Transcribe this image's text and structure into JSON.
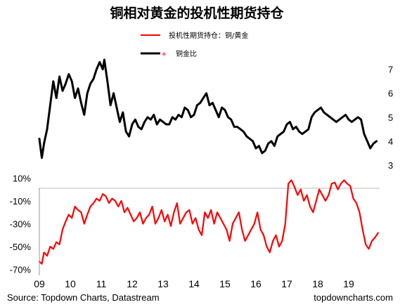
{
  "chart_data": {
    "title": "铜相对黄金的投机性期货持仓",
    "source": "Source: Topdown Charts, Datastream",
    "watermark": "topdowncharts.com",
    "colors": {
      "ratio": "#000000",
      "positioning": "#ff0000"
    },
    "legend": [
      {
        "key": "positioning",
        "label": "投机性期货持仓：铜/黄金"
      },
      {
        "key": "ratio",
        "label": "铜金比"
      }
    ],
    "x_tick_labels": [
      "09",
      "10",
      "11",
      "12",
      "13",
      "14",
      "15",
      "16",
      "17",
      "18",
      "19"
    ],
    "x_range": [
      2009.0,
      2020.0
    ],
    "panels": [
      {
        "name": "copper-gold-ratio",
        "type": "line",
        "axis_side": "right",
        "ylim": [
          3.0,
          7.4
        ],
        "yticks": [
          3,
          4,
          5,
          6,
          7
        ],
        "series": [
          {
            "key": "ratio",
            "x": [
              2009.0,
              2009.08,
              2009.15,
              2009.25,
              2009.35,
              2009.45,
              2009.55,
              2009.65,
              2009.75,
              2009.85,
              2009.95,
              2010.05,
              2010.15,
              2010.25,
              2010.35,
              2010.45,
              2010.55,
              2010.65,
              2010.75,
              2010.85,
              2010.95,
              2011.05,
              2011.1,
              2011.2,
              2011.3,
              2011.4,
              2011.5,
              2011.6,
              2011.7,
              2011.8,
              2011.9,
              2012.0,
              2012.1,
              2012.2,
              2012.3,
              2012.4,
              2012.5,
              2012.6,
              2012.7,
              2012.8,
              2012.9,
              2013.0,
              2013.1,
              2013.2,
              2013.3,
              2013.4,
              2013.5,
              2013.6,
              2013.7,
              2013.8,
              2013.9,
              2014.0,
              2014.1,
              2014.2,
              2014.3,
              2014.4,
              2014.5,
              2014.6,
              2014.7,
              2014.8,
              2014.9,
              2015.0,
              2015.1,
              2015.2,
              2015.3,
              2015.4,
              2015.5,
              2015.6,
              2015.7,
              2015.8,
              2015.9,
              2016.0,
              2016.1,
              2016.2,
              2016.3,
              2016.4,
              2016.5,
              2016.6,
              2016.7,
              2016.8,
              2016.9,
              2017.0,
              2017.1,
              2017.2,
              2017.3,
              2017.4,
              2017.5,
              2017.6,
              2017.7,
              2017.8,
              2017.9,
              2018.0,
              2018.1,
              2018.2,
              2018.3,
              2018.4,
              2018.5,
              2018.6,
              2018.7,
              2018.8,
              2018.9,
              2019.0,
              2019.1,
              2019.2,
              2019.3,
              2019.4,
              2019.5,
              2019.6,
              2019.7,
              2019.8,
              2019.9
            ],
            "values": [
              4.1,
              3.3,
              3.9,
              4.5,
              5.5,
              6.5,
              5.8,
              6.7,
              6.1,
              6.4,
              6.8,
              6.5,
              5.8,
              6.2,
              5.6,
              5.1,
              6.0,
              6.4,
              6.6,
              7.0,
              7.3,
              7.0,
              7.4,
              6.5,
              5.5,
              6.0,
              5.4,
              4.8,
              5.2,
              4.4,
              4.2,
              4.7,
              4.9,
              4.6,
              4.5,
              4.8,
              5.0,
              4.9,
              5.1,
              4.7,
              4.9,
              4.8,
              4.7,
              4.7,
              5.0,
              4.9,
              5.1,
              5.0,
              5.4,
              5.3,
              5.0,
              5.1,
              5.5,
              5.6,
              5.8,
              6.0,
              5.5,
              5.6,
              5.3,
              5.0,
              5.4,
              5.3,
              5.0,
              4.9,
              4.6,
              4.6,
              4.5,
              4.4,
              4.2,
              4.1,
              4.0,
              3.7,
              3.8,
              3.5,
              3.6,
              3.9,
              4.0,
              3.8,
              4.2,
              4.3,
              4.4,
              4.7,
              4.8,
              4.5,
              4.6,
              4.4,
              4.3,
              4.4,
              4.5,
              5.0,
              5.2,
              5.3,
              5.4,
              5.2,
              5.1,
              5.0,
              4.9,
              4.8,
              4.9,
              5.0,
              5.1,
              4.9,
              4.8,
              4.9,
              5.0,
              4.9,
              4.3,
              4.0,
              3.7,
              3.9,
              4.0
            ]
          }
        ]
      },
      {
        "name": "speculative-positioning",
        "type": "line",
        "axis_side": "left",
        "ylim": [
          -0.72,
          0.12
        ],
        "yticks": [
          0.1,
          -0.1,
          -0.3,
          -0.5,
          -0.7
        ],
        "ytick_labels": [
          "10%",
          "-10%",
          "-30%",
          "-50%",
          "-70%"
        ],
        "series": [
          {
            "key": "positioning",
            "x": [
              2009.0,
              2009.08,
              2009.15,
              2009.25,
              2009.35,
              2009.45,
              2009.55,
              2009.65,
              2009.75,
              2009.85,
              2009.95,
              2010.05,
              2010.15,
              2010.25,
              2010.35,
              2010.45,
              2010.55,
              2010.65,
              2010.75,
              2010.85,
              2010.95,
              2011.05,
              2011.15,
              2011.25,
              2011.35,
              2011.45,
              2011.55,
              2011.65,
              2011.75,
              2011.85,
              2011.95,
              2012.05,
              2012.15,
              2012.25,
              2012.35,
              2012.45,
              2012.55,
              2012.65,
              2012.75,
              2012.85,
              2012.95,
              2013.05,
              2013.15,
              2013.25,
              2013.35,
              2013.45,
              2013.55,
              2013.65,
              2013.75,
              2013.85,
              2013.95,
              2014.05,
              2014.15,
              2014.25,
              2014.35,
              2014.45,
              2014.55,
              2014.65,
              2014.75,
              2014.85,
              2014.95,
              2015.05,
              2015.15,
              2015.25,
              2015.35,
              2015.45,
              2015.55,
              2015.65,
              2015.75,
              2015.85,
              2015.95,
              2016.05,
              2016.15,
              2016.25,
              2016.35,
              2016.45,
              2016.55,
              2016.65,
              2016.75,
              2016.85,
              2016.95,
              2017.05,
              2017.15,
              2017.25,
              2017.35,
              2017.45,
              2017.55,
              2017.65,
              2017.75,
              2017.85,
              2017.95,
              2018.05,
              2018.15,
              2018.25,
              2018.35,
              2018.45,
              2018.55,
              2018.65,
              2018.75,
              2018.85,
              2018.95,
              2019.05,
              2019.15,
              2019.25,
              2019.35,
              2019.45,
              2019.55,
              2019.65,
              2019.75,
              2019.85,
              2019.95
            ],
            "values": [
              -0.63,
              -0.65,
              -0.55,
              -0.58,
              -0.5,
              -0.52,
              -0.46,
              -0.48,
              -0.35,
              -0.28,
              -0.22,
              -0.25,
              -0.15,
              -0.18,
              -0.2,
              -0.3,
              -0.22,
              -0.15,
              -0.12,
              -0.08,
              -0.1,
              -0.04,
              -0.06,
              -0.12,
              -0.08,
              -0.1,
              -0.15,
              -0.1,
              -0.2,
              -0.16,
              -0.22,
              -0.28,
              -0.25,
              -0.2,
              -0.3,
              -0.25,
              -0.22,
              -0.15,
              -0.3,
              -0.25,
              -0.18,
              -0.28,
              -0.22,
              -0.32,
              -0.2,
              -0.12,
              -0.3,
              -0.25,
              -0.2,
              -0.18,
              -0.3,
              -0.25,
              -0.35,
              -0.4,
              -0.2,
              -0.25,
              -0.18,
              -0.3,
              -0.2,
              -0.25,
              -0.3,
              -0.35,
              -0.45,
              -0.3,
              -0.25,
              -0.2,
              -0.35,
              -0.45,
              -0.4,
              -0.35,
              -0.3,
              -0.2,
              -0.35,
              -0.4,
              -0.5,
              -0.55,
              -0.45,
              -0.4,
              -0.5,
              -0.45,
              -0.3,
              0.05,
              0.08,
              0.02,
              -0.05,
              0.0,
              -0.1,
              -0.05,
              -0.15,
              -0.2,
              -0.1,
              0.0,
              -0.05,
              -0.1,
              -0.05,
              0.05,
              0.06,
              0.0,
              0.05,
              0.08,
              0.05,
              0.03,
              -0.08,
              -0.12,
              -0.2,
              -0.35,
              -0.48,
              -0.52,
              -0.45,
              -0.42,
              -0.38
            ]
          }
        ]
      }
    ]
  }
}
